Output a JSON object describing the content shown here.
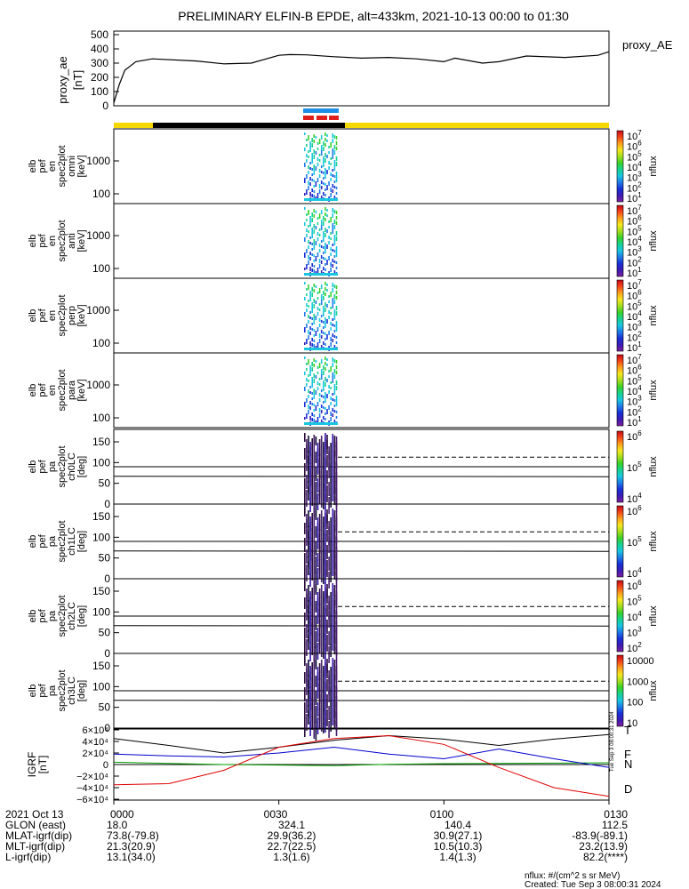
{
  "title": "PRELIMINARY ELFIN-B EPDE, alt=433km, 2021-10-13 00:00 to 01:30",
  "colors": {
    "ae_line": "#000000",
    "bar_yellow": "#f5d800",
    "bar_black": "#000000",
    "sci_blue": "#1e8fe6",
    "sci_red": "#e0201c",
    "B_T": "#000000",
    "B_F": "#00a000",
    "B_N": "#0000cc",
    "B_D": "#e00000"
  },
  "colorbar_stops": [
    "#7c1f9c",
    "#3b1bb5",
    "#1830d6",
    "#1f7be8",
    "#19c6e0",
    "#17d290",
    "#39d12a",
    "#a3de1e",
    "#f5e81e",
    "#fba11c",
    "#f5461a",
    "#c4091a"
  ],
  "chart_data": [
    {
      "type": "line",
      "ylabel": "proxy_ae\n[nT]",
      "legend": "proxy_AE",
      "ylim": [
        0,
        500
      ],
      "yticks": [
        "500",
        "400",
        "300",
        "200",
        "100",
        "0"
      ],
      "x_minutes": [
        0,
        1,
        2,
        4,
        7,
        15,
        20,
        25,
        30,
        32,
        35,
        40,
        45,
        50,
        55,
        60,
        62,
        67,
        70,
        75,
        82,
        88,
        90
      ],
      "y": [
        20,
        150,
        250,
        310,
        330,
        315,
        295,
        300,
        355,
        360,
        358,
        345,
        335,
        340,
        330,
        310,
        335,
        300,
        310,
        350,
        340,
        355,
        380
      ]
    },
    {
      "type": "heatmap",
      "ylabel": [
        "elb",
        "pef",
        "en",
        "spec2plot",
        "omni",
        "[keV]"
      ],
      "yticks": [
        "1000",
        "100"
      ],
      "colorbar": {
        "label": "nflux",
        "ticks": [
          "10^7",
          "10^6",
          "10^5",
          "10^4",
          "10^3",
          "10^2",
          "10^1"
        ]
      }
    },
    {
      "type": "heatmap",
      "ylabel": [
        "elb",
        "pef",
        "en",
        "spec2plot",
        "anti",
        "[keV]"
      ],
      "yticks": [
        "1000",
        "100"
      ],
      "colorbar": {
        "label": "nflux",
        "ticks": [
          "10^7",
          "10^6",
          "10^5",
          "10^4",
          "10^3",
          "10^2",
          "10^1"
        ]
      }
    },
    {
      "type": "heatmap",
      "ylabel": [
        "elb",
        "pef",
        "en",
        "spec2plot",
        "perp",
        "[keV]"
      ],
      "yticks": [
        "1000",
        "100"
      ],
      "colorbar": {
        "label": "nflux",
        "ticks": [
          "10^7",
          "10^6",
          "10^5",
          "10^4",
          "10^3",
          "10^2",
          "10^1"
        ]
      }
    },
    {
      "type": "heatmap",
      "ylabel": [
        "elb",
        "pef",
        "en",
        "spec2plot",
        "para",
        "[keV]"
      ],
      "yticks": [
        "1000",
        "100"
      ],
      "colorbar": {
        "label": "nflux",
        "ticks": [
          "10^7",
          "10^6",
          "10^5",
          "10^4",
          "10^3",
          "10^2",
          "10^1"
        ]
      }
    },
    {
      "type": "heatmap",
      "ylabel": [
        "elb",
        "pef",
        "pa",
        "spec2plot",
        "ch0LC",
        "[deg]"
      ],
      "yticks": [
        "150",
        "100",
        "50",
        "0"
      ],
      "colorbar": {
        "label": "nflux",
        "ticks": [
          "10^6",
          "10^5",
          "10^4"
        ]
      }
    },
    {
      "type": "heatmap",
      "ylabel": [
        "elb",
        "pef",
        "pa",
        "spec2plot",
        "ch1LC",
        "[deg]"
      ],
      "yticks": [
        "150",
        "100",
        "50",
        "0"
      ],
      "colorbar": {
        "label": "nflux",
        "ticks": [
          "10^6",
          "10^5",
          "10^4"
        ]
      }
    },
    {
      "type": "heatmap",
      "ylabel": [
        "elb",
        "pef",
        "pa",
        "spec2plot",
        "ch2LC",
        "[deg]"
      ],
      "yticks": [
        "150",
        "100",
        "50",
        "0"
      ],
      "colorbar": {
        "label": "nflux",
        "ticks": [
          "10^6",
          "10^5",
          "10^4",
          "10^3",
          "10^2"
        ]
      }
    },
    {
      "type": "heatmap",
      "ylabel": [
        "elb",
        "pef",
        "pa",
        "spec2plot",
        "ch3LC",
        "[deg]"
      ],
      "yticks": [
        "150",
        "100",
        "50",
        "0"
      ],
      "colorbar": {
        "label": "nflux",
        "ticks": [
          "10000",
          "1000",
          "100",
          "10"
        ]
      }
    },
    {
      "type": "line",
      "ylabel": "IGRF\n[nT]",
      "yticks": [
        "6×10⁴",
        "4×10⁴",
        "2×10⁴",
        "0",
        "−2×10⁴",
        "−4×10⁴",
        "−6×10⁴"
      ],
      "ylim": [
        -60000,
        60000
      ],
      "series": [
        {
          "name": "T",
          "x_minutes": [
            0,
            10,
            20,
            30,
            40,
            50,
            60,
            70,
            80,
            90
          ],
          "values": [
            45000,
            33000,
            20000,
            30000,
            42000,
            50000,
            44000,
            33000,
            44000,
            52000
          ]
        },
        {
          "name": "F",
          "x_minutes": [
            0,
            10,
            20,
            30,
            40,
            50,
            60,
            70,
            80,
            90
          ],
          "values": [
            4000,
            2000,
            0,
            -1000,
            -2000,
            500,
            1500,
            2000,
            2500,
            3000
          ]
        },
        {
          "name": "N",
          "x_minutes": [
            0,
            10,
            20,
            30,
            40,
            50,
            60,
            70,
            80,
            90
          ],
          "values": [
            18000,
            15000,
            13000,
            20000,
            30000,
            18000,
            10000,
            27000,
            10000,
            -5000
          ]
        },
        {
          "name": "D",
          "x_minutes": [
            0,
            10,
            20,
            30,
            40,
            50,
            60,
            70,
            80,
            90
          ],
          "values": [
            -35000,
            -33000,
            -10000,
            30000,
            45000,
            50000,
            35000,
            -5000,
            -40000,
            -55000
          ]
        }
      ]
    }
  ],
  "xaxis": {
    "row_labels": [
      "2021 Oct 13",
      "GLON (east)",
      "MLAT-igrf(dip)",
      "MLT-igrf(dip)",
      "L-igrf(dip)"
    ],
    "columns": [
      {
        "time": "0000",
        "values": [
          "18.0",
          "73.8(-79.8)",
          "21.3(20.9)",
          "13.1(34.0)"
        ]
      },
      {
        "time": "0030",
        "values": [
          "324.1",
          "29.9(36.2)",
          "22.7(22.5)",
          "1.3(1.6)"
        ]
      },
      {
        "time": "0100",
        "values": [
          "140.4",
          "30.9(27.1)",
          "10.5(10.3)",
          "1.4(1.3)"
        ]
      },
      {
        "time": "0130",
        "values": [
          "112.5",
          "-83.9(-89.1)",
          "23.2(13.9)",
          "82.2(****)"
        ]
      }
    ]
  },
  "footer": {
    "units": "nflux: #/(cm^2 s sr MeV)",
    "created": "Created: Tue Sep  3 08:00:31 2024"
  },
  "vertical_stamp": "Tue Sep  3 08:00:31 2024"
}
